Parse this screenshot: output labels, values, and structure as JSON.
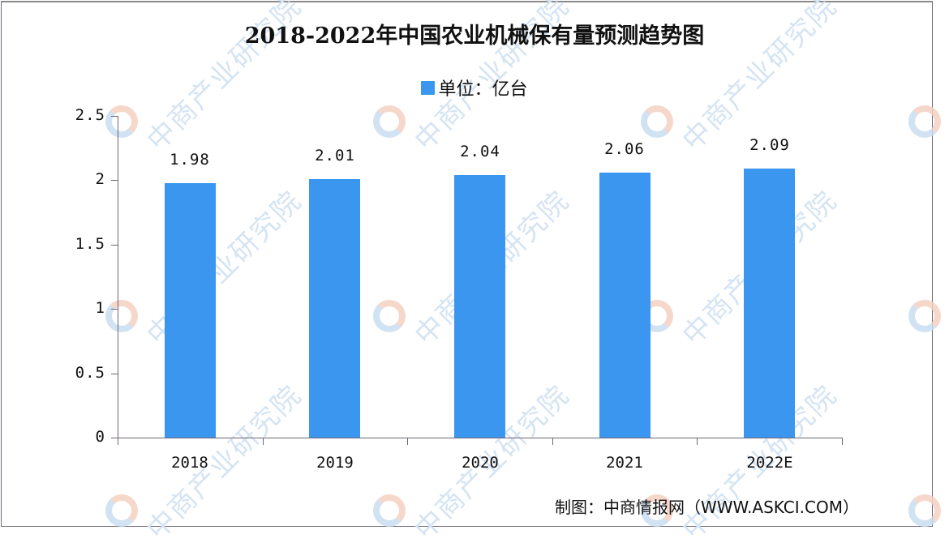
{
  "chart_data": {
    "type": "bar",
    "title": "2018-2022年中国农业机械保有量预测趋势图",
    "legend": [
      {
        "label": "单位：亿台",
        "color": "#3a96ee"
      }
    ],
    "legend_position": "top-center",
    "categories": [
      "2018",
      "2019",
      "2020",
      "2021",
      "2022E"
    ],
    "series": [
      {
        "name": "单位：亿台",
        "values": [
          1.98,
          2.01,
          2.04,
          2.06,
          2.09
        ]
      }
    ],
    "value_labels": [
      "1.98",
      "2.01",
      "2.04",
      "2.06",
      "2.09"
    ],
    "xlabel": "",
    "ylabel": "",
    "ylim": [
      0,
      2.5
    ],
    "yticks": [
      "0",
      "0.5",
      "1",
      "1.5",
      "2",
      "2.5"
    ],
    "grid": false,
    "bar_color": "#3a96ee",
    "source": "制图：中商情报网（WWW.ASKCI.COM）"
  },
  "watermark": {
    "text": "中商产业研究院"
  }
}
